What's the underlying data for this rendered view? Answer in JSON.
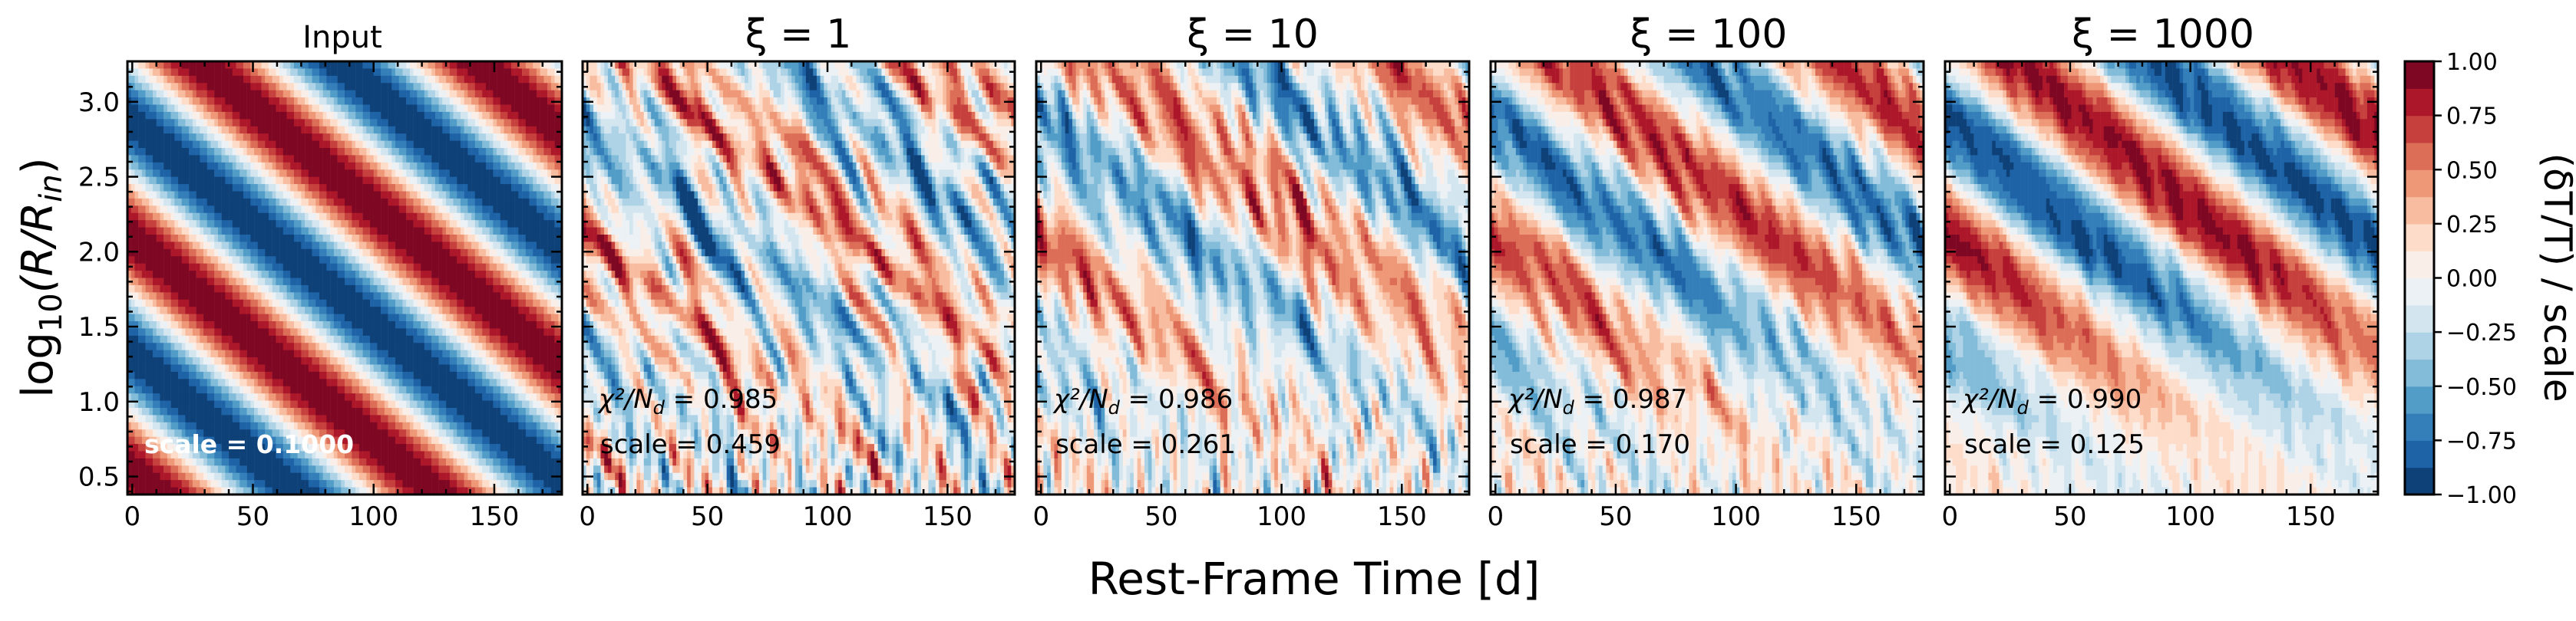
{
  "chart_data": {
    "type": "heatmap",
    "figure": {
      "xlabel": "Rest-Frame Time [d]",
      "ylabel_main": "log",
      "ylabel_sub": "10",
      "ylabel_arg": "(R/R",
      "ylabel_arg_sub": "in",
      "ylabel_close": ")",
      "xlim": [
        -2,
        178
      ],
      "ylim": [
        0.38,
        3.27
      ],
      "xticks": [
        0,
        50,
        100,
        150
      ],
      "yticks": [
        0.5,
        1.0,
        1.5,
        2.0,
        2.5,
        3.0
      ],
      "ytick_labels": [
        "0.5",
        "1.0",
        "1.5",
        "2.0",
        "2.5",
        "3.0"
      ]
    },
    "colorbar": {
      "label": "(δT/T) / scale",
      "min": -1.0,
      "max": 1.0,
      "levels": 16,
      "colormap": "RdBu_r",
      "ticks": [
        1.0,
        0.75,
        0.5,
        0.25,
        0.0,
        -0.25,
        -0.5,
        -0.75,
        -1.0
      ],
      "tick_labels": [
        "1.00",
        "0.75",
        "0.50",
        "0.25",
        "0.00",
        "−0.25",
        "−0.50",
        "−0.75",
        "−1.00"
      ]
    },
    "panels": [
      {
        "id": "input",
        "title": "Input",
        "title_style": "plain",
        "scale_label": "scale = 0.1000",
        "chi_label": "",
        "chi_value": ""
      },
      {
        "id": "xi1",
        "title": "ξ = 1",
        "title_style": "math",
        "scale_label": "scale = 0.459",
        "chi_label": "χ²/N",
        "chi_sub": "d",
        "chi_value": " = 0.985"
      },
      {
        "id": "xi10",
        "title": "ξ = 10",
        "title_style": "math",
        "scale_label": "scale = 0.261",
        "chi_label": "χ²/N",
        "chi_sub": "d",
        "chi_value": " = 0.986"
      },
      {
        "id": "xi100",
        "title": "ξ = 100",
        "title_style": "math",
        "scale_label": "scale = 0.170",
        "chi_label": "χ²/N",
        "chi_sub": "d",
        "chi_value": " = 0.987"
      },
      {
        "id": "xi1000",
        "title": "ξ = 1000",
        "title_style": "math",
        "scale_label": "scale = 0.125",
        "chi_label": "χ²/N",
        "chi_sub": "d",
        "chi_value": " = 0.990"
      }
    ],
    "colors": {
      "red_dark": "#67001f",
      "red": "#d6604d",
      "white": "#f7f7f7",
      "blue": "#4393c3",
      "blue_dark": "#053061"
    }
  }
}
